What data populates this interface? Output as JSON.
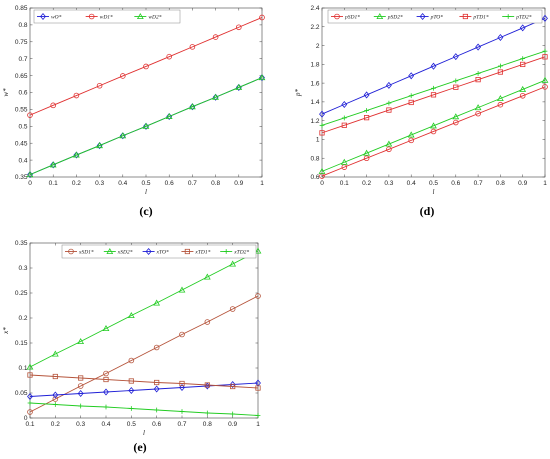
{
  "chart_data": [
    {
      "id": "c",
      "type": "line",
      "panel_label": "(c)",
      "xlabel": "l",
      "ylabel": "w*",
      "xlim": [
        0,
        1
      ],
      "ylim": [
        0.35,
        0.85
      ],
      "x": [
        0,
        0.1,
        0.2,
        0.3,
        0.4,
        0.5,
        0.6,
        0.7,
        0.8,
        0.9,
        1
      ],
      "x_ticks": [
        "0",
        "0.1",
        "0.2",
        "0.3",
        "0.4",
        "0.5",
        "0.6",
        "0.7",
        "0.8",
        "0.9",
        "1"
      ],
      "y_ticks": [
        "0.35",
        "0.4",
        "0.45",
        "0.5",
        "0.55",
        "0.6",
        "0.65",
        "0.7",
        "0.75",
        "0.8",
        "0.85"
      ],
      "legend_position": "top-left",
      "series": [
        {
          "name": "wO*",
          "color": "#1f1fd6",
          "marker": "diamond",
          "values": [
            0.357,
            0.386,
            0.415,
            0.443,
            0.472,
            0.5,
            0.529,
            0.558,
            0.586,
            0.615,
            0.644
          ]
        },
        {
          "name": "wD1*",
          "color": "#e03030",
          "marker": "circle",
          "values": [
            0.533,
            0.562,
            0.591,
            0.62,
            0.649,
            0.677,
            0.706,
            0.735,
            0.764,
            0.793,
            0.822
          ]
        },
        {
          "name": "wD2*",
          "color": "#22cc22",
          "marker": "triangle",
          "values": [
            0.357,
            0.386,
            0.415,
            0.443,
            0.472,
            0.5,
            0.529,
            0.558,
            0.586,
            0.615,
            0.644
          ]
        }
      ]
    },
    {
      "id": "d",
      "type": "line",
      "panel_label": "(d)",
      "xlabel": "l",
      "ylabel": "p*",
      "xlim": [
        0,
        1
      ],
      "ylim": [
        0.6,
        2.4
      ],
      "x": [
        0,
        0.1,
        0.2,
        0.3,
        0.4,
        0.5,
        0.6,
        0.7,
        0.8,
        0.9,
        1
      ],
      "x_ticks": [
        "0",
        "0.1",
        "0.2",
        "0.3",
        "0.4",
        "0.5",
        "0.6",
        "0.7",
        "0.8",
        "0.9",
        "1"
      ],
      "y_ticks": [
        "0.6",
        "0.8",
        "1",
        "1.2",
        "1.4",
        "1.6",
        "1.8",
        "2",
        "2.2",
        "2.4"
      ],
      "legend_position": "top",
      "series": [
        {
          "name": "pSD1*",
          "color": "#e03030",
          "marker": "circle",
          "values": [
            0.61,
            0.705,
            0.8,
            0.895,
            0.99,
            1.085,
            1.18,
            1.275,
            1.37,
            1.465,
            1.56
          ]
        },
        {
          "name": "pSD2*",
          "color": "#22cc22",
          "marker": "triangle",
          "values": [
            0.66,
            0.757,
            0.854,
            0.951,
            1.048,
            1.145,
            1.242,
            1.339,
            1.436,
            1.533,
            1.63
          ]
        },
        {
          "name": "pTO*",
          "color": "#1f1fd6",
          "marker": "diamond",
          "values": [
            1.27,
            1.372,
            1.474,
            1.576,
            1.678,
            1.78,
            1.882,
            1.984,
            2.086,
            2.188,
            2.29
          ]
        },
        {
          "name": "pTD1*",
          "color": "#e03030",
          "marker": "square",
          "values": [
            1.07,
            1.151,
            1.232,
            1.313,
            1.394,
            1.475,
            1.556,
            1.637,
            1.718,
            1.799,
            1.88
          ]
        },
        {
          "name": "pTD2*",
          "color": "#22cc22",
          "marker": "plus",
          "values": [
            1.15,
            1.229,
            1.308,
            1.387,
            1.466,
            1.545,
            1.624,
            1.703,
            1.782,
            1.861,
            1.94
          ]
        }
      ]
    },
    {
      "id": "e",
      "type": "line",
      "panel_label": "(e)",
      "xlabel": "l",
      "ylabel": "x*",
      "xlim": [
        0.1,
        1
      ],
      "ylim": [
        0,
        0.35
      ],
      "x": [
        0.1,
        0.2,
        0.3,
        0.4,
        0.5,
        0.6,
        0.7,
        0.8,
        0.9,
        1
      ],
      "x_ticks": [
        "0.1",
        "0.2",
        "0.3",
        "0.4",
        "0.5",
        "0.6",
        "0.7",
        "0.8",
        "0.9",
        "1"
      ],
      "y_ticks": [
        "0",
        "0.05",
        "0.1",
        "0.15",
        "0.2",
        "0.25",
        "0.3",
        "0.35"
      ],
      "legend_position": "top",
      "series": [
        {
          "name": "xSD1*",
          "color": "#b5533a",
          "marker": "circle",
          "values": [
            0.012,
            0.038,
            0.064,
            0.089,
            0.115,
            0.141,
            0.167,
            0.192,
            0.218,
            0.244
          ]
        },
        {
          "name": "xSD2*",
          "color": "#22cc22",
          "marker": "triangle",
          "values": [
            0.102,
            0.128,
            0.153,
            0.179,
            0.205,
            0.23,
            0.256,
            0.282,
            0.308,
            0.334
          ]
        },
        {
          "name": "xTO*",
          "color": "#1f1fd6",
          "marker": "diamond",
          "values": [
            0.043,
            0.046,
            0.049,
            0.052,
            0.055,
            0.058,
            0.061,
            0.064,
            0.067,
            0.07
          ]
        },
        {
          "name": "xTD1*",
          "color": "#b5533a",
          "marker": "square",
          "values": [
            0.086,
            0.083,
            0.08,
            0.077,
            0.074,
            0.071,
            0.069,
            0.066,
            0.063,
            0.06
          ]
        },
        {
          "name": "xTD2*",
          "color": "#22cc22",
          "marker": "plus",
          "values": [
            0.03,
            0.027,
            0.024,
            0.022,
            0.019,
            0.016,
            0.013,
            0.01,
            0.008,
            0.005
          ]
        }
      ]
    }
  ]
}
